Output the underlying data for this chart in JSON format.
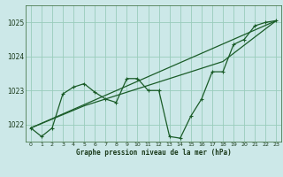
{
  "title": "Graphe pression niveau de la mer (hPa)",
  "bg_color": "#cce8e8",
  "grid_color": "#99ccbb",
  "line_color": "#1a5c28",
  "xlim": [
    -0.5,
    23.5
  ],
  "ylim": [
    1021.5,
    1025.5
  ],
  "yticks": [
    1022,
    1023,
    1024,
    1025
  ],
  "xticks": [
    0,
    1,
    2,
    3,
    4,
    5,
    6,
    7,
    8,
    9,
    10,
    11,
    12,
    13,
    14,
    15,
    16,
    17,
    18,
    19,
    20,
    21,
    22,
    23
  ],
  "series_main_x": [
    0,
    1,
    2,
    3,
    4,
    5,
    6,
    7,
    8,
    9,
    10,
    11,
    12,
    13,
    14,
    15,
    16,
    17,
    18,
    19,
    20,
    21,
    22,
    23
  ],
  "series_main_y": [
    1021.9,
    1021.65,
    1021.9,
    1022.9,
    1023.1,
    1023.2,
    1022.95,
    1022.75,
    1022.65,
    1023.35,
    1023.35,
    1023.0,
    1023.0,
    1021.65,
    1021.6,
    1022.25,
    1022.75,
    1023.55,
    1023.55,
    1024.35,
    1024.5,
    1024.9,
    1025.0,
    1025.05
  ],
  "series_line1_x": [
    0,
    23
  ],
  "series_line1_y": [
    1021.9,
    1025.05
  ],
  "series_line2_x": [
    0,
    5,
    10,
    18,
    23
  ],
  "series_line2_y": [
    1021.9,
    1022.55,
    1023.05,
    1023.85,
    1025.05
  ]
}
